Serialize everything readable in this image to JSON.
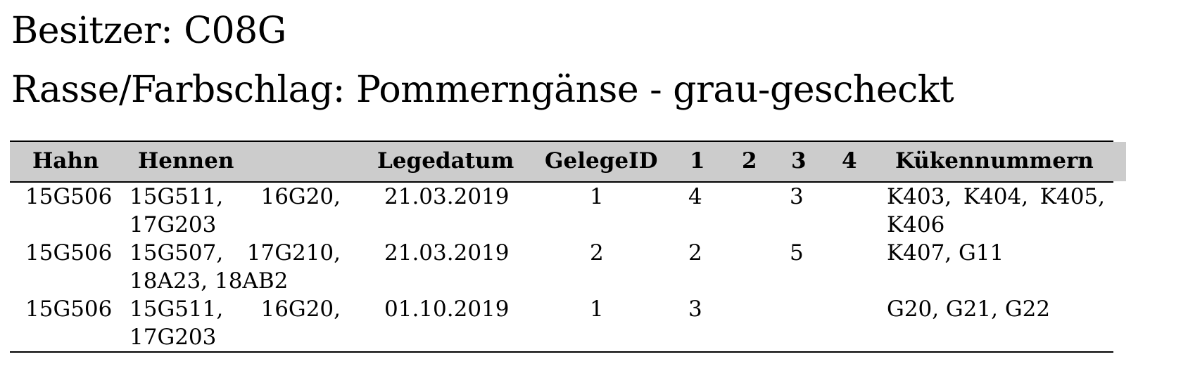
{
  "owner": {
    "label": "Besitzer:",
    "value": "C08G"
  },
  "breed": {
    "label": "Rasse/Farbschlag:",
    "value": "Pommerngänse - grau-gescheckt"
  },
  "table": {
    "header_bg": "#cccccc",
    "headers": {
      "hahn": "Hahn",
      "hennen": "Hennen",
      "legedatum": "Legedatum",
      "gelegeid": "GelegeID",
      "c1": "1",
      "c2": "2",
      "c3": "3",
      "c4": "4",
      "kueken": "Kükennummern"
    },
    "rows": [
      {
        "hahn": "15G506",
        "hennen": "15G511, 16G20, 17G203",
        "legedatum": "21.03.2019",
        "gelegeid": "1",
        "c1": "4",
        "c2": "",
        "c3": "3",
        "c4": "",
        "kueken": "K403, K404, K405, K406"
      },
      {
        "hahn": "15G506",
        "hennen": "15G507, 17G210, 18A23, 18AB2",
        "legedatum": "21.03.2019",
        "gelegeid": "2",
        "c1": "2",
        "c2": "",
        "c3": "5",
        "c4": "",
        "kueken": "K407, G11"
      },
      {
        "hahn": "15G506",
        "hennen": "15G511, 16G20, 17G203",
        "legedatum": "01.10.2019",
        "gelegeid": "1",
        "c1": "3",
        "c2": "",
        "c3": "",
        "c4": "",
        "kueken": "G20, G21, G22"
      }
    ]
  }
}
